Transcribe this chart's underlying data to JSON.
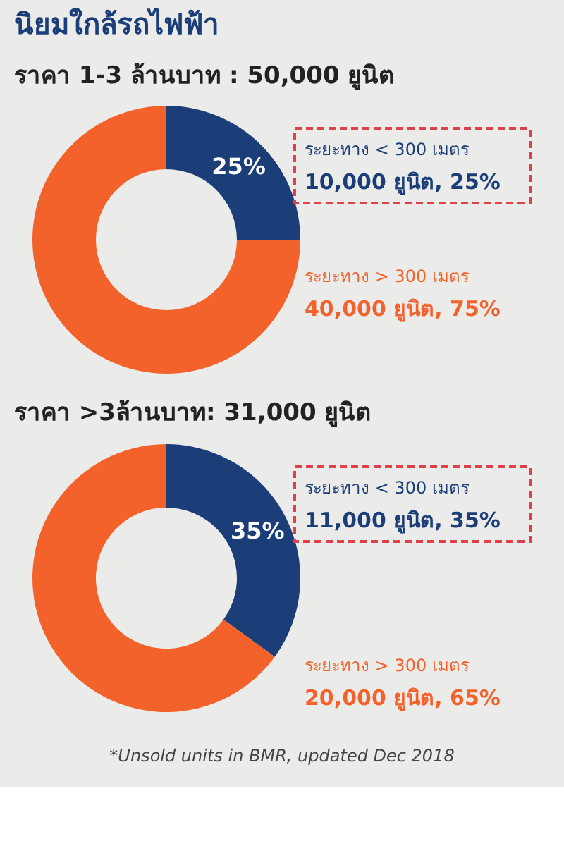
{
  "chart_data": [
    {
      "type": "donut",
      "title": "นิยมใกล้รถไฟฟ้า",
      "subtitle": "ราคา 1-3 ล้านบาท : 50,000 ยูนิต",
      "categories": [
        "ระยะทาง < 300 เมตร",
        "ระยะทาง > 300 เมตร"
      ],
      "values": [
        25,
        75
      ],
      "colors": [
        "#1b3d78",
        "#f4622c"
      ],
      "value_labels": [
        "25%",
        null
      ],
      "annotations": [
        "10,000 ยูนิต, 25%",
        "40,000 ยูนิต, 75%"
      ]
    },
    {
      "type": "donut",
      "title": "ราคา >3ล้านบาท: 31,000 ยูนิต",
      "categories": [
        "ระยะทาง < 300 เมตร",
        "ระยะทาง > 300 เมตร"
      ],
      "values": [
        35,
        65
      ],
      "colors": [
        "#1b3d78",
        "#f4622c"
      ],
      "value_labels": [
        "35%",
        null
      ],
      "annotations": [
        "11,000 ยูนิต, 35%",
        "20,000 ยูนิต, 65%",
        "*Unsold units in BMR, updated Dec 2018"
      ]
    }
  ]
}
